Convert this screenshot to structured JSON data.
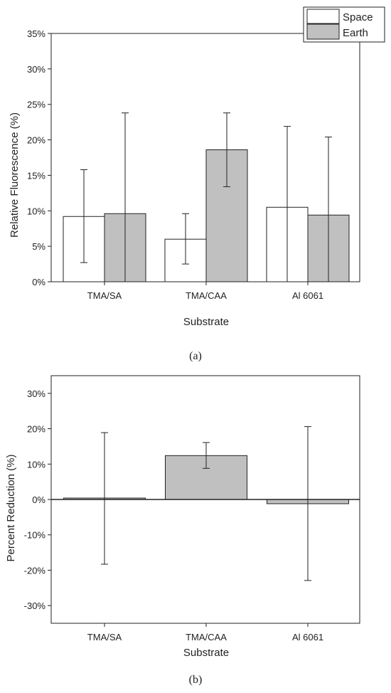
{
  "colors": {
    "space_fill": "#ffffff",
    "earth_fill": "#c0c0c0",
    "axis": "#222222"
  },
  "panel_a": {
    "caption": "(a)",
    "legend": [
      "Space",
      "Earth"
    ]
  },
  "panel_b": {
    "caption": "(b)"
  },
  "chart_data": [
    {
      "type": "bar",
      "title": "",
      "xlabel": "Substrate",
      "ylabel": "Relative Fluorescence (%)",
      "categories": [
        "TMA/SA",
        "TMA/CAA",
        "Al 6061"
      ],
      "ylim": [
        0,
        35
      ],
      "yticks": [
        "0%",
        "5%",
        "10%",
        "15%",
        "20%",
        "25%",
        "30%",
        "35%"
      ],
      "legend_position": "top-right",
      "grid": false,
      "series": [
        {
          "name": "Space",
          "values": [
            9.2,
            6.0,
            10.5
          ],
          "err_low": [
            2.7,
            2.5,
            0.0
          ],
          "err_high": [
            15.8,
            9.6,
            21.9
          ]
        },
        {
          "name": "Earth",
          "values": [
            9.6,
            18.6,
            9.4
          ],
          "err_low": [
            0.0,
            13.4,
            0.0
          ],
          "err_high": [
            23.8,
            23.8,
            20.4
          ]
        }
      ]
    },
    {
      "type": "bar",
      "title": "",
      "xlabel": "Substrate",
      "ylabel": "Percent Reduction (%)",
      "categories": [
        "TMA/SA",
        "TMA/CAA",
        "Al 6061"
      ],
      "ylim": [
        -35,
        35
      ],
      "yticks": [
        "-30%",
        "-20%",
        "-10%",
        "0%",
        "10%",
        "20%",
        "30%"
      ],
      "grid": false,
      "series": [
        {
          "values": [
            0.4,
            12.4,
            -1.2
          ],
          "err_low": [
            -18.3,
            8.8,
            -22.9
          ],
          "err_high": [
            18.9,
            16.1,
            20.6
          ]
        }
      ]
    }
  ]
}
